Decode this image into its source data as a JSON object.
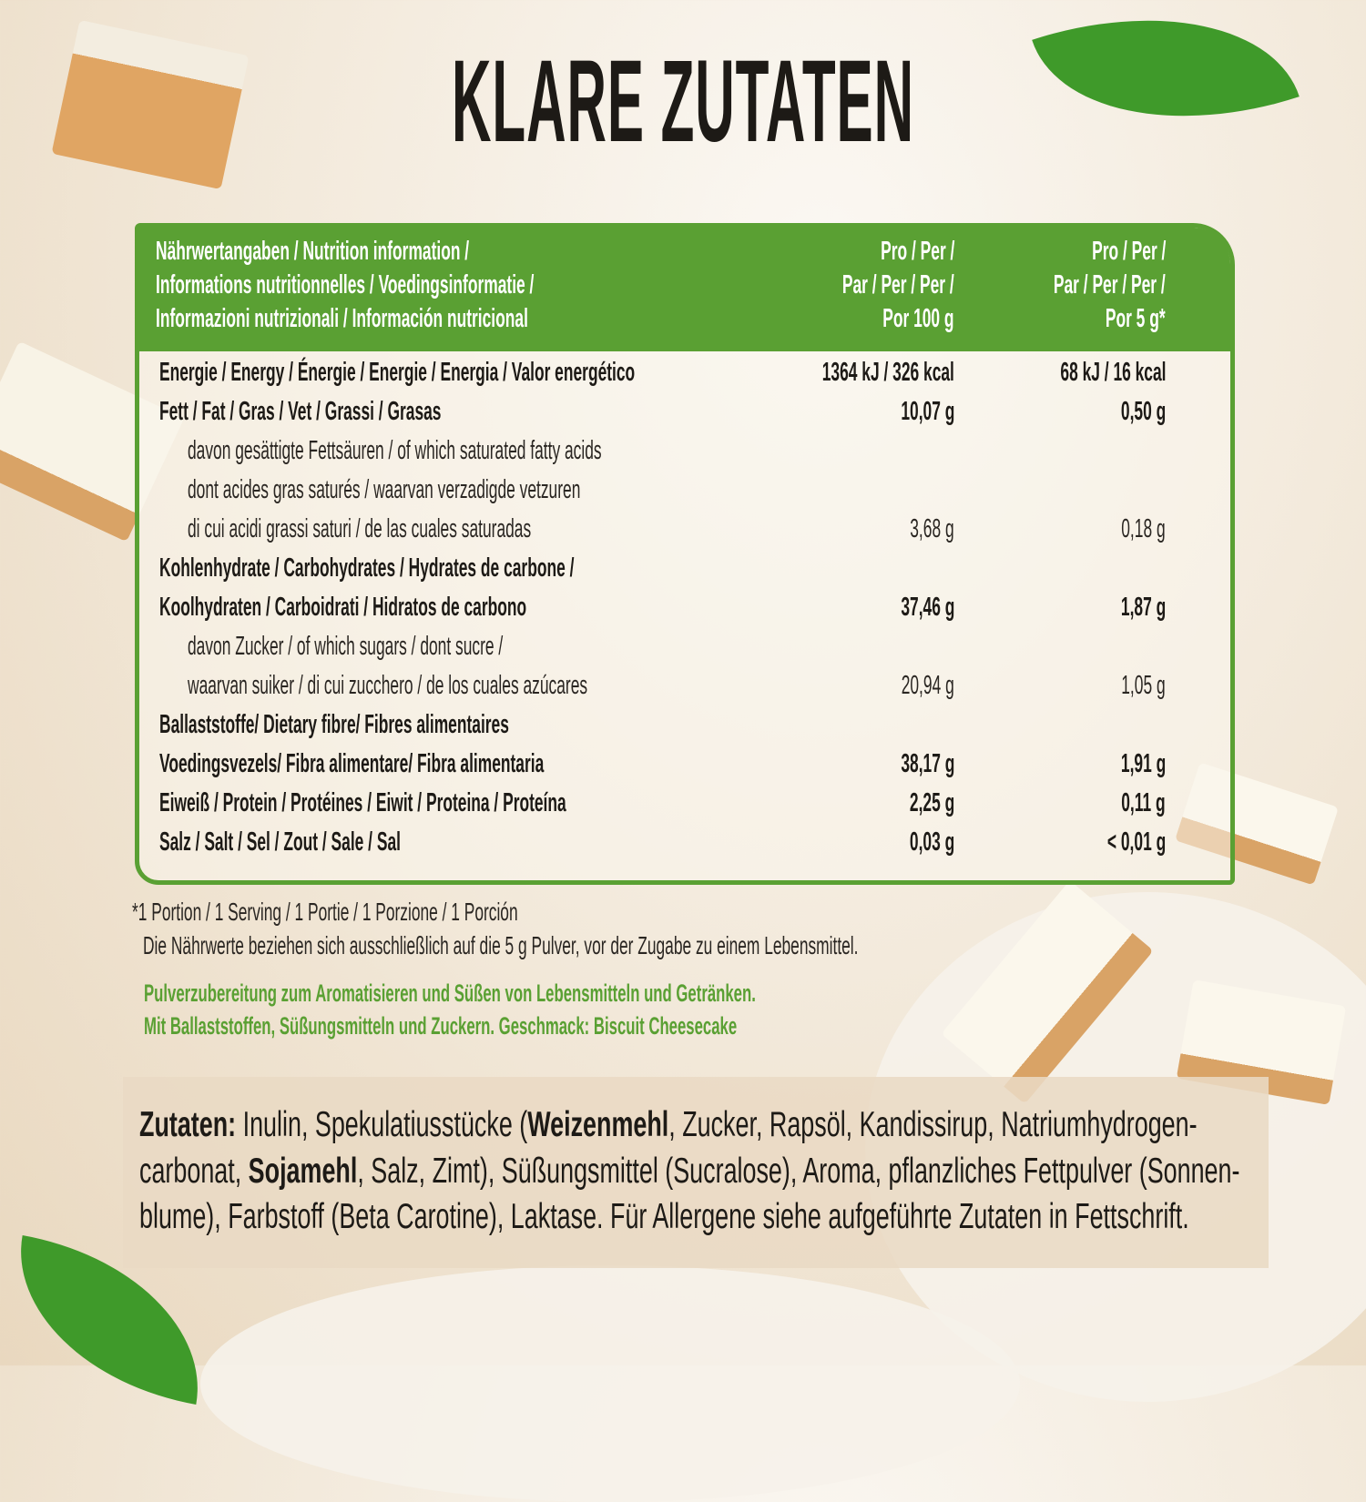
{
  "title": "KLARE ZUTATEN",
  "table": {
    "header": {
      "label_lines": [
        "Nährwertangaben / Nutrition information /",
        "Informations nutritionnelles / Voedingsinformatie /",
        "Informazioni nutrizionali / Información nutricional"
      ],
      "col1_lines": [
        "Pro / Per /",
        "Par / Per / Per /",
        "Por 100 g"
      ],
      "col2_lines": [
        "Pro / Per /",
        "Par / Per / Per /",
        "Por 5 g*"
      ]
    },
    "rows": [
      {
        "label": "Energie / Energy / Énergie / Energie / Energia / Valor energético",
        "per100": "1364 kJ / 326 kcal",
        "per5": "68 kJ / 16 kcal",
        "bold": true
      },
      {
        "label": "Fett / Fat / Gras / Vet / Grassi / Grasas",
        "per100": "10,07 g",
        "per5": "0,50 g",
        "bold": true
      },
      {
        "label": "davon gesättigte Fettsäuren / of which saturated fatty acids",
        "per100": "",
        "per5": "",
        "bold": false
      },
      {
        "label": "dont acides gras saturés / waarvan verzadigde vetzuren",
        "per100": "",
        "per5": "",
        "bold": false
      },
      {
        "label": "di cui acidi grassi saturi / de las cuales saturadas",
        "per100": "3,68 g",
        "per5": "0,18 g",
        "bold": false
      },
      {
        "label": "Kohlenhydrate / Carbohydrates / Hydrates de carbone /",
        "per100": "",
        "per5": "",
        "bold": true
      },
      {
        "label": "Koolhydraten / Carboidrati / Hidratos de carbono",
        "per100": "37,46 g",
        "per5": "1,87 g",
        "bold": true
      },
      {
        "label": "davon Zucker / of which sugars / dont sucre /",
        "per100": "",
        "per5": "",
        "bold": false
      },
      {
        "label": "waarvan suiker / di cui zucchero / de los cuales azúcares",
        "per100": "20,94 g",
        "per5": "1,05 g",
        "bold": false
      },
      {
        "label": "Ballaststoffe/ Dietary fibre/ Fibres alimentaires",
        "per100": "",
        "per5": "",
        "bold": true
      },
      {
        "label": "Voedingsvezels/ Fibra alimentare/ Fibra alimentaria",
        "per100": "38,17 g",
        "per5": "1,91 g",
        "bold": true
      },
      {
        "label": "Eiweiß / Protein / Protéines / Eiwit / Proteina / Proteína",
        "per100": "2,25 g",
        "per5": "0,11 g",
        "bold": true
      },
      {
        "label": "Salz / Salt / Sel / Zout / Sale / Sal",
        "per100": "0,03 g",
        "per5": "< 0,01 g",
        "bold": true
      }
    ]
  },
  "footnotes": [
    "*1 Portion / 1 Serving / 1 Portie / 1 Porzione / 1 Porción",
    "Die Nährwerte beziehen sich ausschließlich auf die 5 g Pulver, vor der Zugabe zu einem Lebensmittel."
  ],
  "description": [
    "Pulverzubereitung zum Aromatisieren und Süßen von Lebensmitteln und Getränken.",
    "Mit Ballaststoffen, Süßungsmitteln und Zuckern. Geschmack:  Biscuit Cheesecake"
  ],
  "ingredients": {
    "label": "Zutaten:",
    "line1a": " Inulin, Spekulatiusstücke (",
    "allergen1": "Weizenmehl",
    "line1b": ", Zucker, Rapsöl, Kandissirup, Natriumhydrogen-",
    "line2a": "carbonat, ",
    "allergen2": "Sojamehl",
    "line2b": ", Salz, Zimt), Süßungsmittel (Sucralose), Aroma, pflanzliches Fettpulver (Sonnen-",
    "line3": "blume), Farbstoff (Beta Carotine), Laktase. Für Allergene siehe aufgeführte Zutaten in Fettschrift."
  },
  "colors": {
    "accent": "#5aa033",
    "text": "#1d1a16",
    "background": "#f3eadc"
  }
}
